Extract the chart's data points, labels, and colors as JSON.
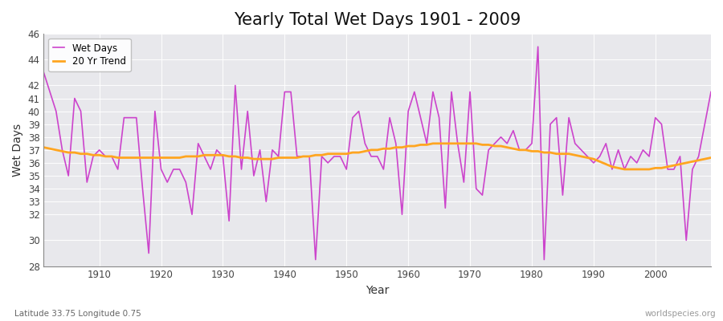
{
  "title": "Yearly Total Wet Days 1901 - 2009",
  "xlabel": "Year",
  "ylabel": "Wet Days",
  "subtitle": "Latitude 33.75 Longitude 0.75",
  "watermark": "worldspecies.org",
  "wet_days_color": "#CC44CC",
  "trend_color": "#FFA520",
  "plot_bg_color": "#E8E8EC",
  "fig_bg_color": "#FFFFFF",
  "ylim": [
    28,
    46
  ],
  "yticks": [
    28,
    30,
    32,
    33,
    34,
    35,
    36,
    37,
    38,
    39,
    40,
    41,
    42,
    44,
    46
  ],
  "xticks": [
    1910,
    1920,
    1930,
    1940,
    1950,
    1960,
    1970,
    1980,
    1990,
    2000
  ],
  "xlim": [
    1901,
    2009
  ],
  "years": [
    1901,
    1902,
    1903,
    1904,
    1905,
    1906,
    1907,
    1908,
    1909,
    1910,
    1911,
    1912,
    1913,
    1914,
    1915,
    1916,
    1917,
    1918,
    1919,
    1920,
    1921,
    1922,
    1923,
    1924,
    1925,
    1926,
    1927,
    1928,
    1929,
    1930,
    1931,
    1932,
    1933,
    1934,
    1935,
    1936,
    1937,
    1938,
    1939,
    1940,
    1941,
    1942,
    1943,
    1944,
    1945,
    1946,
    1947,
    1948,
    1949,
    1950,
    1951,
    1952,
    1953,
    1954,
    1955,
    1956,
    1957,
    1958,
    1959,
    1960,
    1961,
    1962,
    1963,
    1964,
    1965,
    1966,
    1967,
    1968,
    1969,
    1970,
    1971,
    1972,
    1973,
    1974,
    1975,
    1976,
    1977,
    1978,
    1979,
    1980,
    1981,
    1982,
    1983,
    1984,
    1985,
    1986,
    1987,
    1988,
    1989,
    1990,
    1991,
    1992,
    1993,
    1994,
    1995,
    1996,
    1997,
    1998,
    1999,
    2000,
    2001,
    2002,
    2003,
    2004,
    2005,
    2006,
    2007,
    2008,
    2009
  ],
  "wet_days": [
    43.0,
    41.5,
    40.0,
    37.0,
    35.0,
    41.0,
    40.0,
    34.5,
    36.5,
    37.0,
    36.5,
    36.5,
    35.5,
    39.5,
    39.5,
    39.5,
    34.0,
    29.0,
    40.0,
    35.5,
    34.5,
    35.5,
    35.5,
    34.5,
    32.0,
    37.5,
    36.5,
    35.5,
    37.0,
    36.5,
    31.5,
    42.0,
    35.5,
    40.0,
    35.0,
    37.0,
    33.0,
    37.0,
    36.5,
    41.5,
    41.5,
    36.5,
    36.5,
    36.5,
    28.5,
    36.5,
    36.0,
    36.5,
    36.5,
    35.5,
    39.5,
    40.0,
    37.5,
    36.5,
    36.5,
    35.5,
    39.5,
    37.5,
    32.0,
    40.0,
    41.5,
    39.5,
    37.5,
    41.5,
    39.5,
    32.5,
    41.5,
    37.5,
    34.5,
    41.5,
    34.0,
    33.5,
    37.0,
    37.5,
    38.0,
    37.5,
    38.5,
    37.0,
    37.0,
    37.5,
    45.0,
    28.5,
    39.0,
    39.5,
    33.5,
    39.5,
    37.5,
    37.0,
    36.5,
    36.0,
    36.5,
    37.5,
    35.5,
    37.0,
    35.5,
    36.5,
    36.0,
    37.0,
    36.5,
    39.5,
    39.0,
    35.5,
    35.5,
    36.5,
    30.0,
    35.5,
    36.5,
    39.0,
    41.5
  ],
  "trend_values": [
    37.2,
    37.1,
    37.0,
    36.9,
    36.8,
    36.8,
    36.7,
    36.7,
    36.6,
    36.6,
    36.5,
    36.5,
    36.4,
    36.4,
    36.4,
    36.4,
    36.4,
    36.4,
    36.4,
    36.4,
    36.4,
    36.4,
    36.4,
    36.5,
    36.5,
    36.5,
    36.6,
    36.6,
    36.6,
    36.6,
    36.5,
    36.5,
    36.4,
    36.4,
    36.3,
    36.3,
    36.3,
    36.3,
    36.4,
    36.4,
    36.4,
    36.4,
    36.5,
    36.5,
    36.6,
    36.6,
    36.7,
    36.7,
    36.7,
    36.7,
    36.8,
    36.8,
    36.9,
    37.0,
    37.0,
    37.1,
    37.1,
    37.2,
    37.2,
    37.3,
    37.3,
    37.4,
    37.4,
    37.5,
    37.5,
    37.5,
    37.5,
    37.5,
    37.5,
    37.5,
    37.5,
    37.4,
    37.4,
    37.3,
    37.3,
    37.2,
    37.1,
    37.0,
    37.0,
    36.9,
    36.9,
    36.8,
    36.8,
    36.7,
    36.7,
    36.7,
    36.6,
    36.5,
    36.4,
    36.3,
    36.1,
    35.9,
    35.7,
    35.6,
    35.5,
    35.5,
    35.5,
    35.5,
    35.5,
    35.6,
    35.6,
    35.7,
    35.8,
    35.9,
    36.0,
    36.1,
    36.2,
    36.3,
    36.4
  ]
}
